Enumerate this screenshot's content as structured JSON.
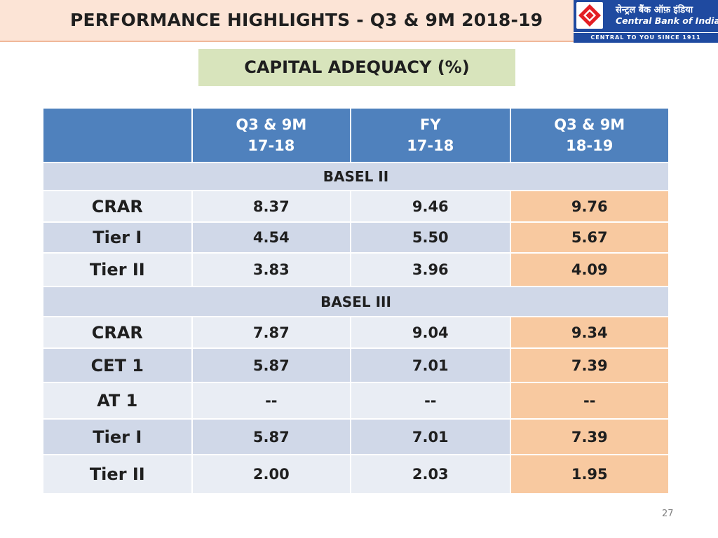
{
  "header": {
    "title": "PERFORMANCE HIGHLIGHTS - Q3 & 9M 2018-19",
    "logo": {
      "hindi_name": "सेन्ट्रल बैंक ऑफ़ इंडिया",
      "english_name": "Central Bank of India",
      "tagline": "CENTRAL TO YOU SINCE 1911",
      "brand_color": "#1f4aa0",
      "accent_color": "#e31e24"
    }
  },
  "subtitle": "CAPITAL ADEQUACY (%)",
  "table": {
    "columns": [
      {
        "line1": "",
        "line2": ""
      },
      {
        "line1": "Q3 & 9M",
        "line2": "17-18"
      },
      {
        "line1": "FY",
        "line2": "17-18"
      },
      {
        "line1": "Q3 & 9M",
        "line2": "18-19"
      }
    ],
    "sections": [
      {
        "name": "BASEL II",
        "rows": [
          {
            "label": "CRAR",
            "values": [
              "8.37",
              "9.46",
              "9.76"
            ]
          },
          {
            "label": "Tier I",
            "values": [
              "4.54",
              "5.50",
              "5.67"
            ]
          },
          {
            "label": "Tier II",
            "values": [
              "3.83",
              "3.96",
              "4.09"
            ]
          }
        ]
      },
      {
        "name": "BASEL III",
        "rows": [
          {
            "label": "CRAR",
            "values": [
              "7.87",
              "9.04",
              "9.34"
            ]
          },
          {
            "label": "CET 1",
            "values": [
              "5.87",
              "7.01",
              "7.39"
            ]
          },
          {
            "label": "AT 1",
            "values": [
              "--",
              "--",
              "--"
            ]
          },
          {
            "label": "Tier I",
            "values": [
              "5.87",
              "7.01",
              "7.39"
            ]
          },
          {
            "label": "Tier II",
            "values": [
              "2.00",
              "2.03",
              "1.95"
            ]
          }
        ]
      }
    ]
  },
  "page_number": "27",
  "colors": {
    "header_row": "#4f81bd",
    "highlight_column": "#f8c9a0",
    "title_bar": "#fce4d6",
    "subtitle_bg": "#d8e4bc"
  }
}
